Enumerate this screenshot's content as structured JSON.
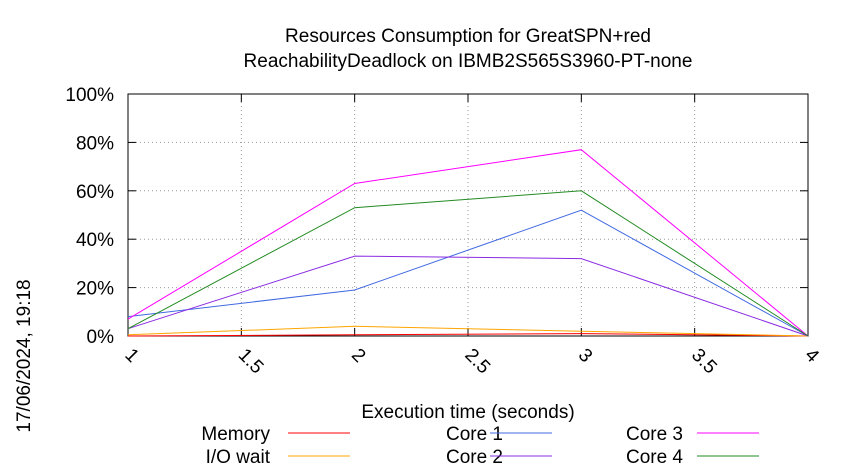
{
  "chart_data": {
    "type": "line",
    "title_line1": "Resources Consumption for GreatSPN+red",
    "title_line2": "ReachabilityDeadlock on IBMB2S565S3960-PT-none",
    "xlabel": "Execution time (seconds)",
    "ylabel": "",
    "side_label": "17/06/2024, 19:18",
    "xlim": [
      1,
      4
    ],
    "ylim": [
      0,
      100
    ],
    "x_ticks": [
      "1",
      "1.5",
      "2",
      "2.5",
      "3",
      "3.5",
      "4"
    ],
    "y_ticks": [
      "0%",
      "20%",
      "40%",
      "60%",
      "80%",
      "100%"
    ],
    "grid": true,
    "legend_position": "bottom",
    "x": [
      1,
      2,
      3,
      4
    ],
    "series": [
      {
        "name": "Memory",
        "color": "#ff0000",
        "values": [
          0,
          0.5,
          1,
          0
        ]
      },
      {
        "name": "I/O wait",
        "color": "#ffa500",
        "values": [
          0.5,
          4,
          2,
          0
        ]
      },
      {
        "name": "Core 1",
        "color": "#4169e1",
        "values": [
          8,
          19,
          52,
          0
        ]
      },
      {
        "name": "Core 2",
        "color": "#8a2be2",
        "values": [
          3,
          33,
          32,
          0
        ]
      },
      {
        "name": "Core 3",
        "color": "#ff00ff",
        "values": [
          7,
          63,
          77,
          0
        ]
      },
      {
        "name": "Core 4",
        "color": "#228b22",
        "values": [
          3,
          53,
          60,
          0
        ]
      }
    ]
  }
}
